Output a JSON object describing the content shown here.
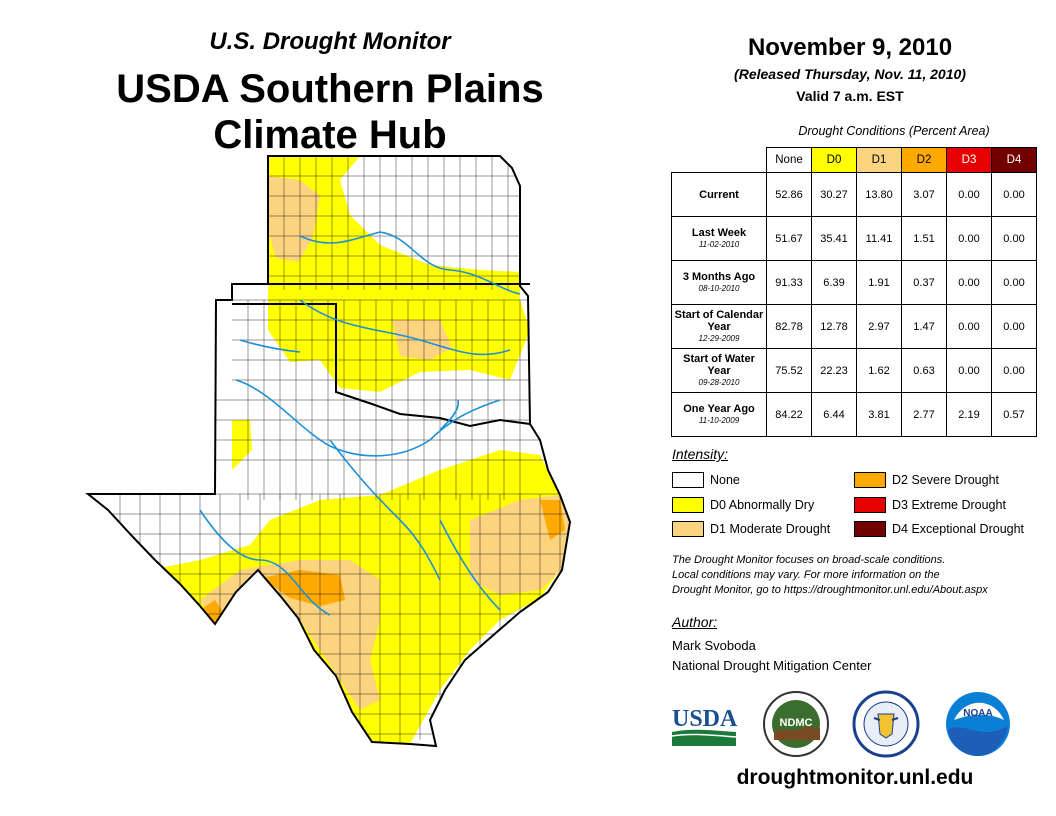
{
  "header": {
    "subtitle": "U.S. Drought Monitor",
    "title_line1": "USDA Southern Plains",
    "title_line2": "Climate Hub"
  },
  "release": {
    "date": "November 9, 2010",
    "released": "(Released Thursday, Nov. 11, 2010)",
    "valid": "Valid 7 a.m. EST"
  },
  "table": {
    "caption": "Drought Conditions (Percent Area)",
    "columns": [
      "None",
      "D0",
      "D1",
      "D2",
      "D3",
      "D4"
    ],
    "column_colors": [
      "#ffffff",
      "#ffff00",
      "#fcd37f",
      "#ffaa00",
      "#e60000",
      "#730000"
    ],
    "rows": [
      {
        "label": "Current",
        "sub": "",
        "values": [
          "52.86",
          "30.27",
          "13.80",
          "3.07",
          "0.00",
          "0.00"
        ]
      },
      {
        "label": "Last Week",
        "sub": "11-02-2010",
        "values": [
          "51.67",
          "35.41",
          "11.41",
          "1.51",
          "0.00",
          "0.00"
        ]
      },
      {
        "label": "3 Months Ago",
        "sub": "08-10-2010",
        "values": [
          "91.33",
          "6.39",
          "1.91",
          "0.37",
          "0.00",
          "0.00"
        ]
      },
      {
        "label": "Start of Calendar Year",
        "sub": "12-29-2009",
        "values": [
          "82.78",
          "12.78",
          "2.97",
          "1.47",
          "0.00",
          "0.00"
        ]
      },
      {
        "label": "Start of Water Year",
        "sub": "09-28-2010",
        "values": [
          "75.52",
          "22.23",
          "1.62",
          "0.63",
          "0.00",
          "0.00"
        ]
      },
      {
        "label": "One Year Ago",
        "sub": "11-10-2009",
        "values": [
          "84.22",
          "6.44",
          "3.81",
          "2.77",
          "2.19",
          "0.57"
        ]
      }
    ]
  },
  "legend": {
    "heading": "Intensity:",
    "items": [
      {
        "label": "None",
        "color": "#ffffff"
      },
      {
        "label": "D0 Abnormally Dry",
        "color": "#ffff00"
      },
      {
        "label": "D1 Moderate Drought",
        "color": "#fcd37f"
      },
      {
        "label": "D2 Severe Drought",
        "color": "#ffaa00"
      },
      {
        "label": "D3 Extreme Drought",
        "color": "#e60000"
      },
      {
        "label": "D4 Exceptional Drought",
        "color": "#730000"
      }
    ]
  },
  "note": {
    "line1": "The Drought Monitor focuses on broad-scale conditions.",
    "line2": "Local conditions may vary. For more information on the",
    "line3": "Drought Monitor, go to https://droughtmonitor.unl.edu/About.aspx"
  },
  "author": {
    "heading": "Author:",
    "name": "Mark Svoboda",
    "org": "National Drought Mitigation Center"
  },
  "logos": {
    "usda": "USDA",
    "ndmc": "NDMC",
    "noaa": "NOAA"
  },
  "footer": {
    "url": "droughtmonitor.unl.edu"
  }
}
